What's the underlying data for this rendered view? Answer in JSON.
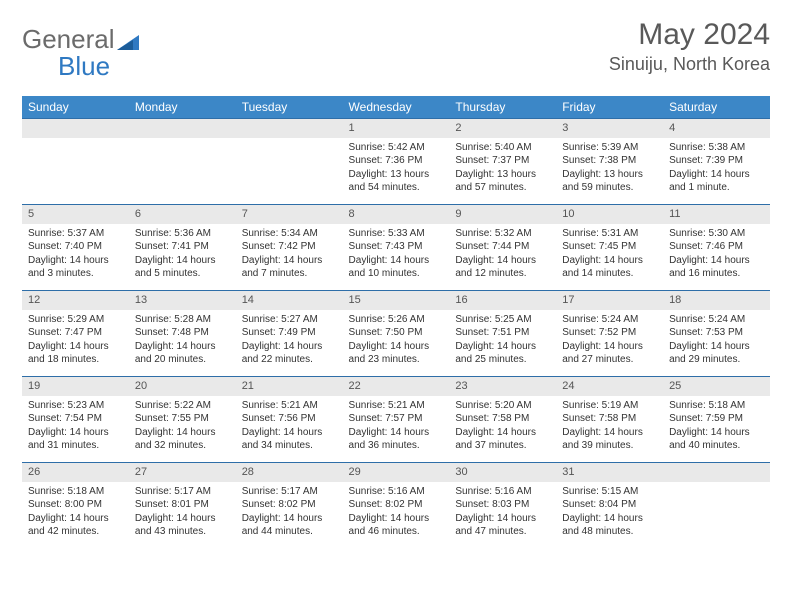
{
  "brand": {
    "part1": "General",
    "part2": "Blue"
  },
  "title": "May 2024",
  "location": "Sinuiju, North Korea",
  "colors": {
    "header_bg": "#3c87c7",
    "row_border": "#2e6ea8",
    "daynum_bg": "#e9e9e9",
    "text": "#333333",
    "title_color": "#595959"
  },
  "dayNames": [
    "Sunday",
    "Monday",
    "Tuesday",
    "Wednesday",
    "Thursday",
    "Friday",
    "Saturday"
  ],
  "firstDayIndex": 3,
  "days": [
    {
      "n": 1,
      "sr": "5:42 AM",
      "ss": "7:36 PM",
      "dl": "13 hours and 54 minutes."
    },
    {
      "n": 2,
      "sr": "5:40 AM",
      "ss": "7:37 PM",
      "dl": "13 hours and 57 minutes."
    },
    {
      "n": 3,
      "sr": "5:39 AM",
      "ss": "7:38 PM",
      "dl": "13 hours and 59 minutes."
    },
    {
      "n": 4,
      "sr": "5:38 AM",
      "ss": "7:39 PM",
      "dl": "14 hours and 1 minute."
    },
    {
      "n": 5,
      "sr": "5:37 AM",
      "ss": "7:40 PM",
      "dl": "14 hours and 3 minutes."
    },
    {
      "n": 6,
      "sr": "5:36 AM",
      "ss": "7:41 PM",
      "dl": "14 hours and 5 minutes."
    },
    {
      "n": 7,
      "sr": "5:34 AM",
      "ss": "7:42 PM",
      "dl": "14 hours and 7 minutes."
    },
    {
      "n": 8,
      "sr": "5:33 AM",
      "ss": "7:43 PM",
      "dl": "14 hours and 10 minutes."
    },
    {
      "n": 9,
      "sr": "5:32 AM",
      "ss": "7:44 PM",
      "dl": "14 hours and 12 minutes."
    },
    {
      "n": 10,
      "sr": "5:31 AM",
      "ss": "7:45 PM",
      "dl": "14 hours and 14 minutes."
    },
    {
      "n": 11,
      "sr": "5:30 AM",
      "ss": "7:46 PM",
      "dl": "14 hours and 16 minutes."
    },
    {
      "n": 12,
      "sr": "5:29 AM",
      "ss": "7:47 PM",
      "dl": "14 hours and 18 minutes."
    },
    {
      "n": 13,
      "sr": "5:28 AM",
      "ss": "7:48 PM",
      "dl": "14 hours and 20 minutes."
    },
    {
      "n": 14,
      "sr": "5:27 AM",
      "ss": "7:49 PM",
      "dl": "14 hours and 22 minutes."
    },
    {
      "n": 15,
      "sr": "5:26 AM",
      "ss": "7:50 PM",
      "dl": "14 hours and 23 minutes."
    },
    {
      "n": 16,
      "sr": "5:25 AM",
      "ss": "7:51 PM",
      "dl": "14 hours and 25 minutes."
    },
    {
      "n": 17,
      "sr": "5:24 AM",
      "ss": "7:52 PM",
      "dl": "14 hours and 27 minutes."
    },
    {
      "n": 18,
      "sr": "5:24 AM",
      "ss": "7:53 PM",
      "dl": "14 hours and 29 minutes."
    },
    {
      "n": 19,
      "sr": "5:23 AM",
      "ss": "7:54 PM",
      "dl": "14 hours and 31 minutes."
    },
    {
      "n": 20,
      "sr": "5:22 AM",
      "ss": "7:55 PM",
      "dl": "14 hours and 32 minutes."
    },
    {
      "n": 21,
      "sr": "5:21 AM",
      "ss": "7:56 PM",
      "dl": "14 hours and 34 minutes."
    },
    {
      "n": 22,
      "sr": "5:21 AM",
      "ss": "7:57 PM",
      "dl": "14 hours and 36 minutes."
    },
    {
      "n": 23,
      "sr": "5:20 AM",
      "ss": "7:58 PM",
      "dl": "14 hours and 37 minutes."
    },
    {
      "n": 24,
      "sr": "5:19 AM",
      "ss": "7:58 PM",
      "dl": "14 hours and 39 minutes."
    },
    {
      "n": 25,
      "sr": "5:18 AM",
      "ss": "7:59 PM",
      "dl": "14 hours and 40 minutes."
    },
    {
      "n": 26,
      "sr": "5:18 AM",
      "ss": "8:00 PM",
      "dl": "14 hours and 42 minutes."
    },
    {
      "n": 27,
      "sr": "5:17 AM",
      "ss": "8:01 PM",
      "dl": "14 hours and 43 minutes."
    },
    {
      "n": 28,
      "sr": "5:17 AM",
      "ss": "8:02 PM",
      "dl": "14 hours and 44 minutes."
    },
    {
      "n": 29,
      "sr": "5:16 AM",
      "ss": "8:02 PM",
      "dl": "14 hours and 46 minutes."
    },
    {
      "n": 30,
      "sr": "5:16 AM",
      "ss": "8:03 PM",
      "dl": "14 hours and 47 minutes."
    },
    {
      "n": 31,
      "sr": "5:15 AM",
      "ss": "8:04 PM",
      "dl": "14 hours and 48 minutes."
    }
  ]
}
